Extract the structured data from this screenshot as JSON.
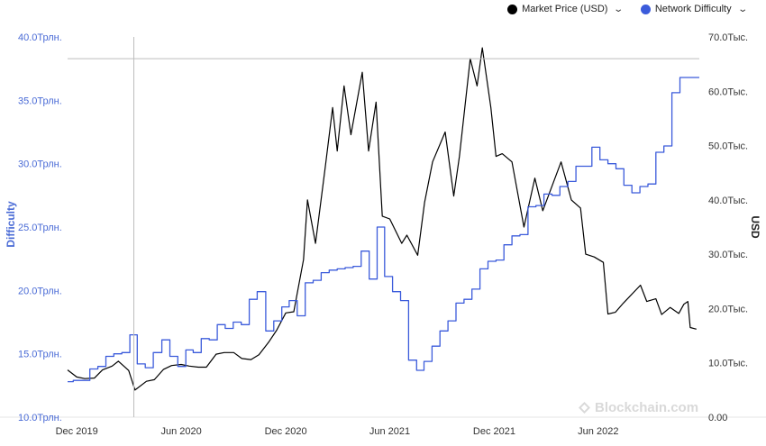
{
  "legend": {
    "items": [
      {
        "label": "Market Price (USD)",
        "color": "#000000",
        "icon": "chevron-down-icon"
      },
      {
        "label": "Network Difficulty",
        "color": "#3b5bdb",
        "icon": "chevron-down-icon"
      }
    ]
  },
  "watermark": {
    "text": "Blockchain.com",
    "icon": "blockchain-logo-icon"
  },
  "chart_data": {
    "type": "line",
    "ylabel_left": "Difficulty",
    "ylabel_right": "USD",
    "x_ticks": [
      "Dec 2019",
      "Jun 2020",
      "Dec 2020",
      "Jun 2021",
      "Dec 2021",
      "Jun 2022"
    ],
    "x_tick_dates": [
      "2019-12-01",
      "2020-06-01",
      "2020-12-01",
      "2021-06-01",
      "2021-12-01",
      "2022-06-01"
    ],
    "xlim": [
      "2019-11-15",
      "2022-11-25"
    ],
    "y_left_ticks": [
      "10.0Трлн.",
      "15.0Трлн.",
      "20.0Трлн.",
      "25.0Трлн.",
      "30.0Трлн.",
      "35.0Трлн.",
      "40.0Трлн."
    ],
    "y_left_values": [
      10,
      15,
      20,
      25,
      30,
      35,
      40
    ],
    "y_left_unit": "trillion",
    "ylim_left": [
      10,
      40
    ],
    "y_right_ticks": [
      "0.00",
      "10.0Тыс.",
      "20.0Тыс.",
      "30.0Тыс.",
      "40.0Тыс.",
      "50.0Тыс.",
      "60.0Тыс.",
      "70.0Тыс."
    ],
    "y_right_values": [
      0,
      10000,
      20000,
      30000,
      40000,
      50000,
      60000,
      70000
    ],
    "ylim_right": [
      0,
      70000
    ],
    "crosshair": {
      "x": "2020-03-10",
      "y_usd": 66000
    },
    "series": [
      {
        "name": "Market Price (USD)",
        "axis": "right",
        "color": "#000000",
        "points": [
          [
            "2019-11-15",
            8700
          ],
          [
            "2019-12-01",
            7400
          ],
          [
            "2019-12-15",
            7100
          ],
          [
            "2020-01-01",
            7200
          ],
          [
            "2020-01-15",
            8700
          ],
          [
            "2020-02-01",
            9400
          ],
          [
            "2020-02-12",
            10300
          ],
          [
            "2020-03-01",
            8600
          ],
          [
            "2020-03-12",
            5000
          ],
          [
            "2020-04-01",
            6600
          ],
          [
            "2020-04-15",
            6900
          ],
          [
            "2020-05-01",
            8800
          ],
          [
            "2020-05-15",
            9500
          ],
          [
            "2020-06-01",
            9700
          ],
          [
            "2020-06-15",
            9400
          ],
          [
            "2020-07-01",
            9200
          ],
          [
            "2020-07-15",
            9200
          ],
          [
            "2020-08-01",
            11600
          ],
          [
            "2020-08-15",
            11900
          ],
          [
            "2020-09-01",
            11900
          ],
          [
            "2020-09-15",
            10800
          ],
          [
            "2020-10-01",
            10600
          ],
          [
            "2020-10-15",
            11500
          ],
          [
            "2020-11-01",
            13800
          ],
          [
            "2020-11-15",
            16000
          ],
          [
            "2020-12-01",
            19200
          ],
          [
            "2020-12-15",
            19400
          ],
          [
            "2021-01-01",
            29000
          ],
          [
            "2021-01-08",
            40000
          ],
          [
            "2021-01-22",
            32000
          ],
          [
            "2021-02-08",
            46000
          ],
          [
            "2021-02-21",
            57000
          ],
          [
            "2021-03-01",
            49000
          ],
          [
            "2021-03-13",
            61000
          ],
          [
            "2021-03-25",
            52000
          ],
          [
            "2021-04-14",
            63500
          ],
          [
            "2021-04-25",
            49000
          ],
          [
            "2021-05-08",
            58000
          ],
          [
            "2021-05-19",
            37000
          ],
          [
            "2021-06-01",
            36500
          ],
          [
            "2021-06-22",
            32000
          ],
          [
            "2021-07-01",
            33500
          ],
          [
            "2021-07-20",
            29800
          ],
          [
            "2021-08-01",
            39500
          ],
          [
            "2021-08-15",
            47000
          ],
          [
            "2021-09-06",
            52500
          ],
          [
            "2021-09-21",
            40700
          ],
          [
            "2021-10-01",
            48000
          ],
          [
            "2021-10-20",
            66000
          ],
          [
            "2021-11-01",
            61000
          ],
          [
            "2021-11-10",
            68000
          ],
          [
            "2021-11-25",
            57000
          ],
          [
            "2021-12-04",
            48000
          ],
          [
            "2021-12-15",
            48500
          ],
          [
            "2022-01-01",
            47000
          ],
          [
            "2022-01-22",
            35000
          ],
          [
            "2022-02-10",
            44000
          ],
          [
            "2022-02-24",
            38000
          ],
          [
            "2022-03-28",
            47000
          ],
          [
            "2022-04-15",
            40000
          ],
          [
            "2022-05-01",
            38500
          ],
          [
            "2022-05-10",
            30000
          ],
          [
            "2022-05-25",
            29500
          ],
          [
            "2022-06-10",
            28500
          ],
          [
            "2022-06-18",
            19000
          ],
          [
            "2022-07-01",
            19300
          ],
          [
            "2022-07-15",
            21000
          ],
          [
            "2022-08-14",
            24300
          ],
          [
            "2022-08-25",
            21300
          ],
          [
            "2022-09-10",
            21800
          ],
          [
            "2022-09-20",
            18900
          ],
          [
            "2022-10-05",
            20200
          ],
          [
            "2022-10-20",
            19100
          ],
          [
            "2022-10-29",
            20800
          ],
          [
            "2022-11-05",
            21300
          ],
          [
            "2022-11-09",
            16500
          ],
          [
            "2022-11-20",
            16200
          ]
        ]
      },
      {
        "name": "Network Difficulty",
        "axis": "left",
        "color": "#3b5bdb",
        "step": true,
        "points": [
          [
            "2019-11-15",
            12.8
          ],
          [
            "2019-11-25",
            12.9
          ],
          [
            "2019-12-10",
            12.9
          ],
          [
            "2019-12-24",
            13.8
          ],
          [
            "2020-01-07",
            14.0
          ],
          [
            "2020-01-21",
            14.8
          ],
          [
            "2020-02-04",
            15.0
          ],
          [
            "2020-02-18",
            15.1
          ],
          [
            "2020-03-03",
            16.5
          ],
          [
            "2020-03-16",
            14.2
          ],
          [
            "2020-03-30",
            13.9
          ],
          [
            "2020-04-13",
            15.1
          ],
          [
            "2020-04-28",
            16.1
          ],
          [
            "2020-05-12",
            14.8
          ],
          [
            "2020-05-26",
            14.0
          ],
          [
            "2020-06-09",
            15.3
          ],
          [
            "2020-06-22",
            15.1
          ],
          [
            "2020-07-06",
            16.2
          ],
          [
            "2020-07-20",
            16.1
          ],
          [
            "2020-08-03",
            17.3
          ],
          [
            "2020-08-17",
            17.0
          ],
          [
            "2020-08-31",
            17.5
          ],
          [
            "2020-09-14",
            17.3
          ],
          [
            "2020-09-28",
            19.3
          ],
          [
            "2020-10-12",
            19.9
          ],
          [
            "2020-10-27",
            16.8
          ],
          [
            "2020-11-10",
            17.6
          ],
          [
            "2020-11-24",
            18.7
          ],
          [
            "2020-12-07",
            19.2
          ],
          [
            "2020-12-21",
            18.0
          ],
          [
            "2021-01-04",
            20.6
          ],
          [
            "2021-01-18",
            20.8
          ],
          [
            "2021-02-01",
            21.4
          ],
          [
            "2021-02-15",
            21.6
          ],
          [
            "2021-03-01",
            21.7
          ],
          [
            "2021-03-15",
            21.8
          ],
          [
            "2021-03-29",
            21.9
          ],
          [
            "2021-04-12",
            23.1
          ],
          [
            "2021-04-26",
            20.9
          ],
          [
            "2021-05-10",
            25.0
          ],
          [
            "2021-05-23",
            21.1
          ],
          [
            "2021-06-06",
            19.9
          ],
          [
            "2021-06-20",
            19.2
          ],
          [
            "2021-07-04",
            14.5
          ],
          [
            "2021-07-18",
            13.7
          ],
          [
            "2021-07-31",
            14.4
          ],
          [
            "2021-08-14",
            15.6
          ],
          [
            "2021-08-28",
            16.8
          ],
          [
            "2021-09-11",
            17.6
          ],
          [
            "2021-09-25",
            19.0
          ],
          [
            "2021-10-09",
            19.3
          ],
          [
            "2021-10-23",
            20.1
          ],
          [
            "2021-11-06",
            21.7
          ],
          [
            "2021-11-20",
            22.3
          ],
          [
            "2021-12-04",
            22.4
          ],
          [
            "2021-12-18",
            23.6
          ],
          [
            "2022-01-01",
            24.3
          ],
          [
            "2022-01-15",
            24.4
          ],
          [
            "2022-01-29",
            26.6
          ],
          [
            "2022-02-12",
            26.7
          ],
          [
            "2022-02-26",
            27.6
          ],
          [
            "2022-03-12",
            27.5
          ],
          [
            "2022-03-26",
            28.2
          ],
          [
            "2022-04-09",
            28.6
          ],
          [
            "2022-04-23",
            29.8
          ],
          [
            "2022-05-07",
            29.8
          ],
          [
            "2022-05-21",
            31.3
          ],
          [
            "2022-06-04",
            30.3
          ],
          [
            "2022-06-18",
            30.0
          ],
          [
            "2022-07-02",
            29.6
          ],
          [
            "2022-07-16",
            28.3
          ],
          [
            "2022-07-30",
            27.7
          ],
          [
            "2022-08-13",
            28.2
          ],
          [
            "2022-08-27",
            28.4
          ],
          [
            "2022-09-10",
            30.9
          ],
          [
            "2022-09-24",
            31.4
          ],
          [
            "2022-10-08",
            35.6
          ],
          [
            "2022-10-22",
            36.8
          ],
          [
            "2022-11-05",
            36.8
          ],
          [
            "2022-11-25",
            36.8
          ]
        ]
      }
    ]
  }
}
